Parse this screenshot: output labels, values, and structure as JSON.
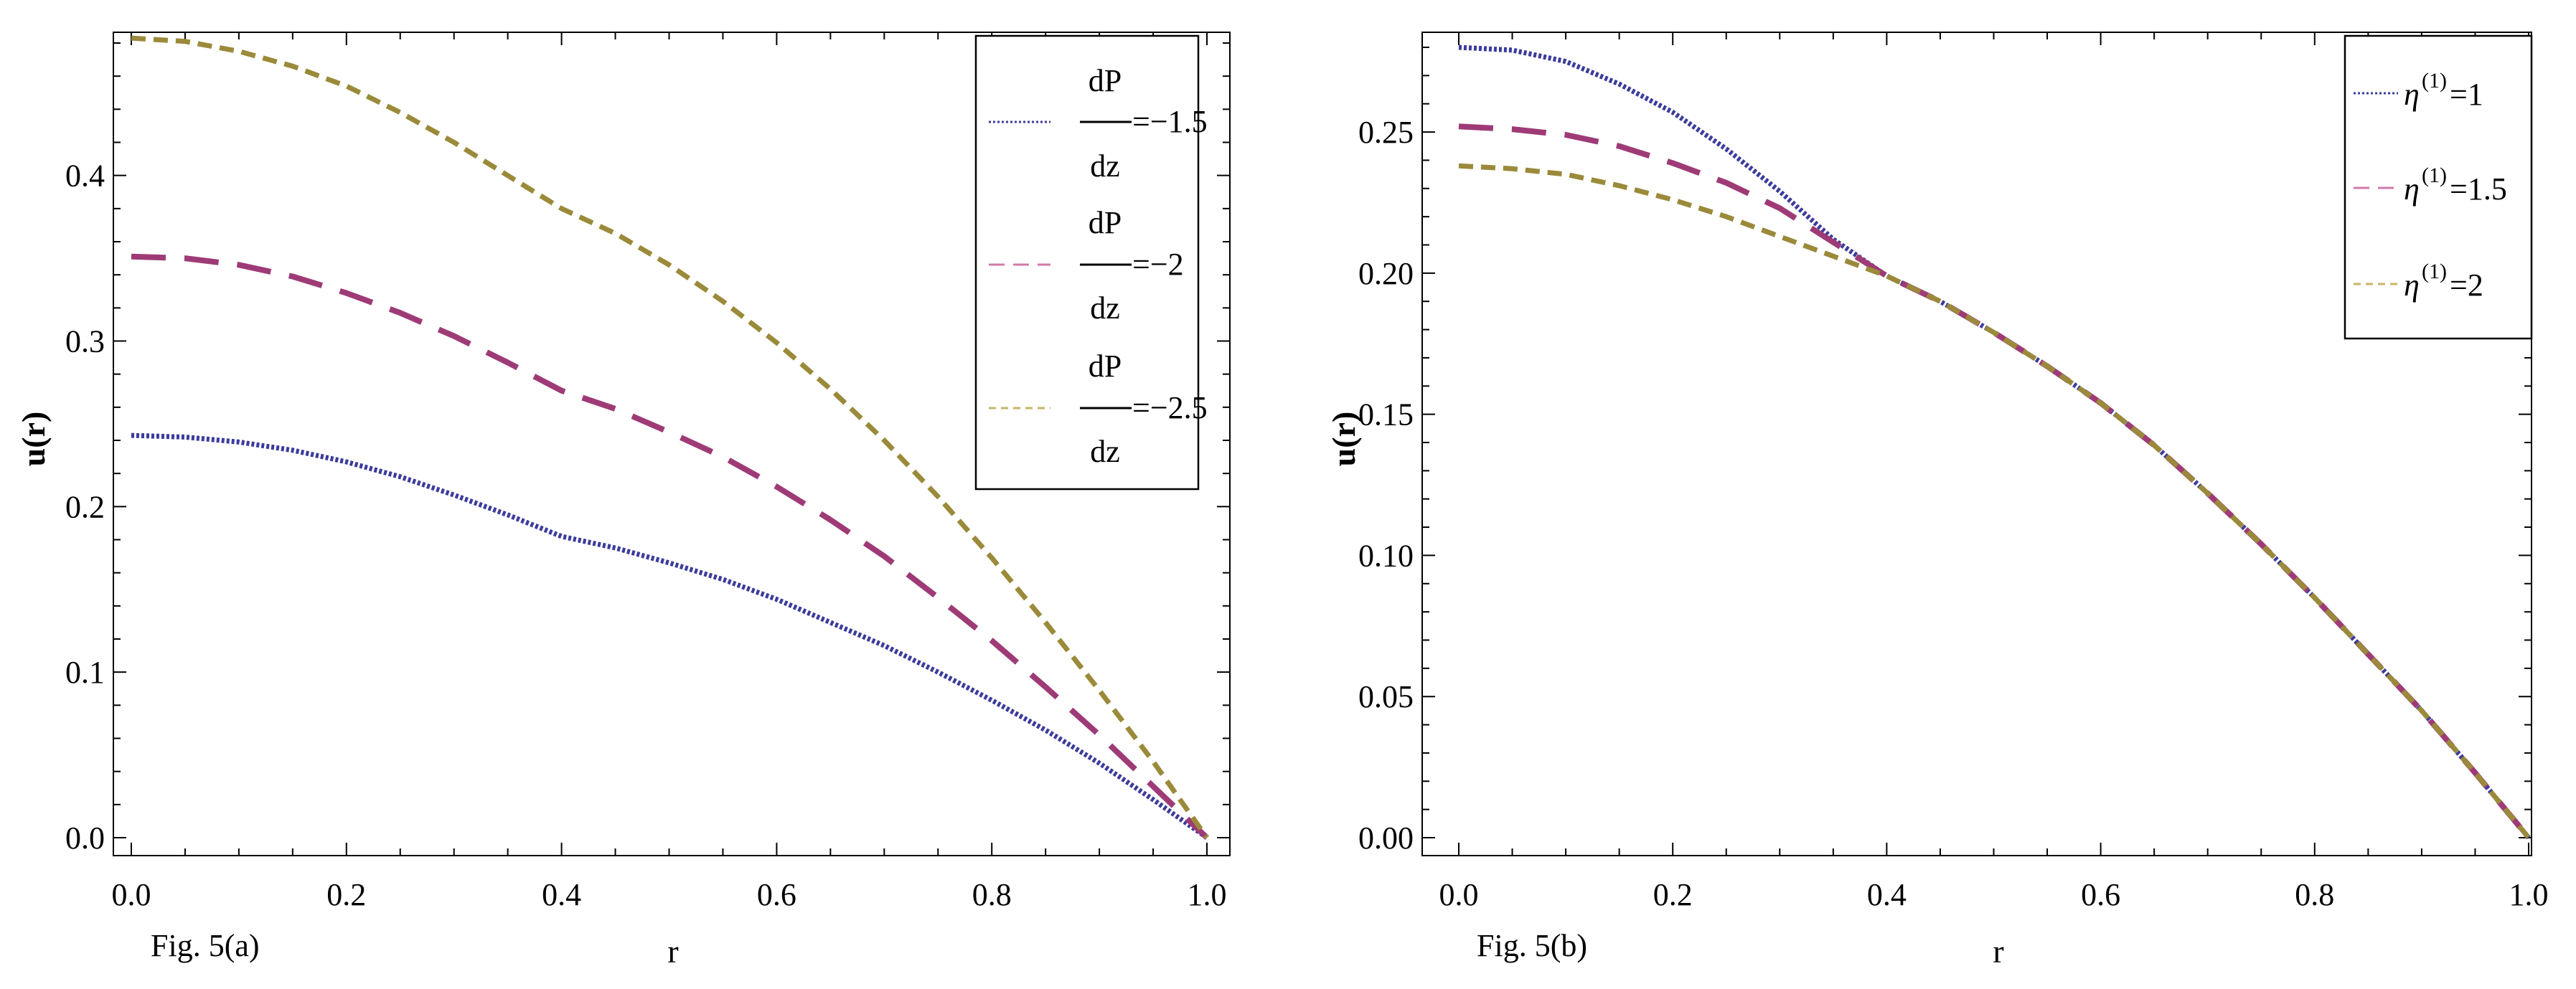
{
  "chart_data": [
    {
      "id": "a",
      "type": "line",
      "caption": "Fig. 5(a)",
      "xlabel": "r",
      "ylabel": "u(r)",
      "xlim": [
        0.0,
        1.0
      ],
      "ylim": [
        0.0,
        0.48
      ],
      "xticks": [
        0.0,
        0.2,
        0.4,
        0.6,
        0.8,
        1.0
      ],
      "xtick_labels": [
        "0.0",
        "0.2",
        "0.4",
        "0.6",
        "0.8",
        "1.0"
      ],
      "yticks": [
        0.0,
        0.1,
        0.2,
        0.3,
        0.4
      ],
      "ytick_labels": [
        "0.0",
        "0.1",
        "0.2",
        "0.3",
        "0.4"
      ],
      "legend_position": "top-right",
      "series": [
        {
          "name": "dP/dz=-1.5",
          "legend_top": "dP",
          "legend_mid": "=−1.5",
          "legend_bottom": "dz",
          "color": "#3b3b9c",
          "style": "dotted",
          "x": [
            0.0,
            0.05,
            0.1,
            0.15,
            0.2,
            0.25,
            0.3,
            0.35,
            0.4,
            0.45,
            0.5,
            0.55,
            0.6,
            0.65,
            0.7,
            0.75,
            0.8,
            0.85,
            0.9,
            0.95,
            1.0
          ],
          "y": [
            0.243,
            0.242,
            0.239,
            0.234,
            0.227,
            0.218,
            0.207,
            0.195,
            0.182,
            0.175,
            0.166,
            0.156,
            0.144,
            0.13,
            0.116,
            0.1,
            0.083,
            0.065,
            0.045,
            0.023,
            0.0
          ]
        },
        {
          "name": "dP/dz=-2",
          "legend_top": "dP",
          "legend_mid": "=−2",
          "legend_bottom": "dz",
          "color": "#9e3b77",
          "style": "long-dashed",
          "x": [
            0.0,
            0.05,
            0.1,
            0.15,
            0.2,
            0.25,
            0.3,
            0.35,
            0.4,
            0.45,
            0.5,
            0.55,
            0.6,
            0.65,
            0.7,
            0.75,
            0.8,
            0.85,
            0.9,
            0.95,
            1.0
          ],
          "y": [
            0.351,
            0.35,
            0.346,
            0.339,
            0.329,
            0.317,
            0.303,
            0.287,
            0.27,
            0.259,
            0.245,
            0.23,
            0.212,
            0.192,
            0.17,
            0.145,
            0.119,
            0.091,
            0.062,
            0.031,
            0.0
          ]
        },
        {
          "name": "dP/dz=-2.5",
          "legend_top": "dP",
          "legend_mid": "=−2.5",
          "legend_bottom": "dz",
          "color": "#9a8a3a",
          "style": "dashed",
          "x": [
            0.0,
            0.05,
            0.1,
            0.15,
            0.2,
            0.25,
            0.3,
            0.35,
            0.4,
            0.45,
            0.5,
            0.55,
            0.6,
            0.65,
            0.7,
            0.75,
            0.8,
            0.85,
            0.9,
            0.95,
            1.0
          ],
          "y": [
            0.483,
            0.481,
            0.475,
            0.466,
            0.454,
            0.438,
            0.42,
            0.4,
            0.38,
            0.365,
            0.346,
            0.324,
            0.299,
            0.271,
            0.24,
            0.206,
            0.169,
            0.13,
            0.089,
            0.046,
            0.0
          ]
        }
      ]
    },
    {
      "id": "b",
      "type": "line",
      "caption": "Fig. 5(b)",
      "xlabel": "r",
      "ylabel": "u(r)",
      "xlim": [
        0.0,
        1.0
      ],
      "ylim": [
        0.0,
        0.28
      ],
      "xticks": [
        0.0,
        0.2,
        0.4,
        0.6,
        0.8,
        1.0
      ],
      "xtick_labels": [
        "0.0",
        "0.2",
        "0.4",
        "0.6",
        "0.8",
        "1.0"
      ],
      "yticks": [
        0.0,
        0.05,
        0.1,
        0.15,
        0.2,
        0.25
      ],
      "ytick_labels": [
        "0.00",
        "0.05",
        "0.10",
        "0.15",
        "0.20",
        "0.25"
      ],
      "legend_position": "top-right",
      "series": [
        {
          "name": "η(1)=1",
          "legend_symbol": "η",
          "legend_sup": "(1)",
          "legend_value": "=1",
          "color": "#3b3b9c",
          "style": "dotted",
          "x": [
            0.0,
            0.05,
            0.1,
            0.15,
            0.2,
            0.25,
            0.3,
            0.35,
            0.4,
            0.45,
            0.5,
            0.55,
            0.6,
            0.65,
            0.7,
            0.75,
            0.8,
            0.85,
            0.9,
            0.95,
            1.0
          ],
          "y": [
            0.28,
            0.279,
            0.275,
            0.267,
            0.257,
            0.244,
            0.229,
            0.212,
            0.199,
            0.19,
            0.179,
            0.167,
            0.154,
            0.139,
            0.122,
            0.104,
            0.085,
            0.065,
            0.045,
            0.023,
            0.0
          ]
        },
        {
          "name": "η(1)=1.5",
          "legend_symbol": "η",
          "legend_sup": "(1)",
          "legend_value": "=1.5",
          "color": "#9e3b77",
          "style": "long-dashed",
          "x": [
            0.0,
            0.05,
            0.1,
            0.15,
            0.2,
            0.25,
            0.3,
            0.35,
            0.4,
            0.45,
            0.5,
            0.55,
            0.6,
            0.65,
            0.7,
            0.75,
            0.8,
            0.85,
            0.9,
            0.95,
            1.0
          ],
          "y": [
            0.252,
            0.251,
            0.249,
            0.245,
            0.239,
            0.232,
            0.223,
            0.211,
            0.199,
            0.19,
            0.179,
            0.167,
            0.154,
            0.139,
            0.122,
            0.104,
            0.085,
            0.065,
            0.045,
            0.023,
            0.0
          ]
        },
        {
          "name": "η(1)=2",
          "legend_symbol": "η",
          "legend_sup": "(1)",
          "legend_value": "=2",
          "color": "#9a8a3a",
          "style": "dashed",
          "x": [
            0.0,
            0.05,
            0.1,
            0.15,
            0.2,
            0.25,
            0.3,
            0.35,
            0.4,
            0.45,
            0.5,
            0.55,
            0.6,
            0.65,
            0.7,
            0.75,
            0.8,
            0.85,
            0.9,
            0.95,
            1.0
          ],
          "y": [
            0.238,
            0.237,
            0.235,
            0.231,
            0.226,
            0.22,
            0.213,
            0.206,
            0.199,
            0.19,
            0.179,
            0.167,
            0.154,
            0.139,
            0.122,
            0.104,
            0.085,
            0.065,
            0.045,
            0.023,
            0.0
          ]
        }
      ]
    }
  ]
}
